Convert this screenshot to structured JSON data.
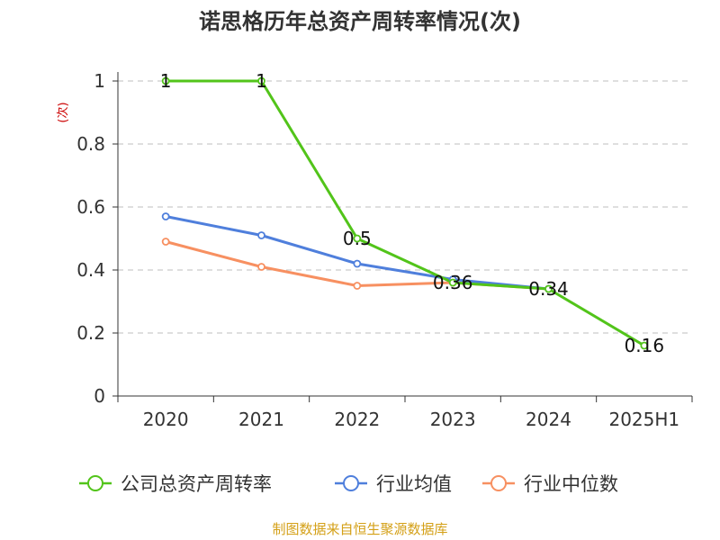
{
  "chart_data": {
    "type": "line",
    "title": "诺思格历年总资产周转率情况(次)",
    "ylabel": "(次)",
    "xlabel": "",
    "categories": [
      "2020",
      "2021",
      "2022",
      "2023",
      "2024",
      "2025H1"
    ],
    "ylim": [
      0,
      1
    ],
    "yticks": [
      "0",
      "0.2",
      "0.4",
      "0.6",
      "0.8",
      "1"
    ],
    "grid": true,
    "legend_position": "bottom",
    "series": [
      {
        "name": "公司总资产周转率",
        "color": "#52c41a",
        "values": [
          1,
          1,
          0.5,
          0.36,
          0.34,
          0.16
        ],
        "labels": [
          "1",
          "1",
          "0.5",
          "0.36",
          "0.34",
          "0.16"
        ]
      },
      {
        "name": "行业均值",
        "color": "#4f7fdc",
        "values": [
          0.57,
          0.51,
          0.42,
          0.37,
          0.34,
          null
        ]
      },
      {
        "name": "行业中位数",
        "color": "#f79061",
        "values": [
          0.49,
          0.41,
          0.35,
          0.36,
          0.34,
          null
        ]
      }
    ]
  },
  "source_text": "制图数据来自恒生聚源数据库",
  "source_color": "#d4a017"
}
